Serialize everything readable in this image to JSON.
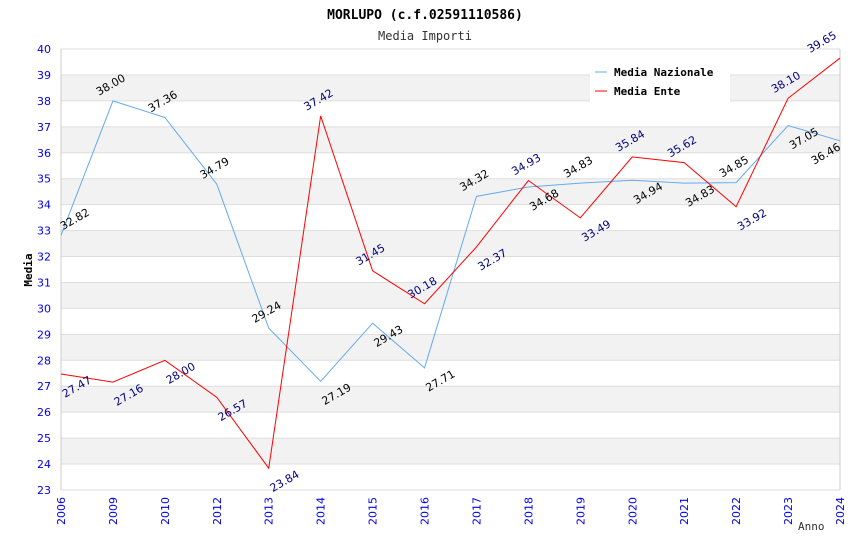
{
  "chart_data": {
    "type": "line",
    "title": "MORLUPO (c.f.02591110586)",
    "subtitle": "Media Importi",
    "xlabel": "Anno",
    "ylabel": "Media",
    "ylim": [
      23,
      40
    ],
    "yticks": [
      23,
      24,
      25,
      26,
      27,
      28,
      29,
      30,
      31,
      32,
      33,
      34,
      35,
      36,
      37,
      38,
      39,
      40
    ],
    "categories": [
      "2006",
      "2009",
      "2010",
      "2012",
      "2013",
      "2014",
      "2015",
      "2016",
      "2017",
      "2018",
      "2019",
      "2020",
      "2021",
      "2022",
      "2023",
      "2024"
    ],
    "legend_position": "top-right",
    "series": [
      {
        "name": "Media Nazionale",
        "color": "#66aaee",
        "label_color": "#000000",
        "values": [
          32.82,
          38.0,
          37.36,
          34.79,
          29.24,
          27.19,
          29.43,
          27.71,
          34.32,
          34.68,
          34.83,
          34.94,
          34.83,
          34.85,
          37.05,
          36.46
        ]
      },
      {
        "name": "Media Ente",
        "color": "#ff0000",
        "label_color": "#000080",
        "values": [
          27.47,
          27.16,
          28.0,
          26.57,
          23.84,
          37.42,
          31.45,
          30.18,
          32.37,
          34.93,
          33.49,
          35.84,
          35.62,
          33.92,
          38.1,
          39.65
        ]
      }
    ]
  }
}
